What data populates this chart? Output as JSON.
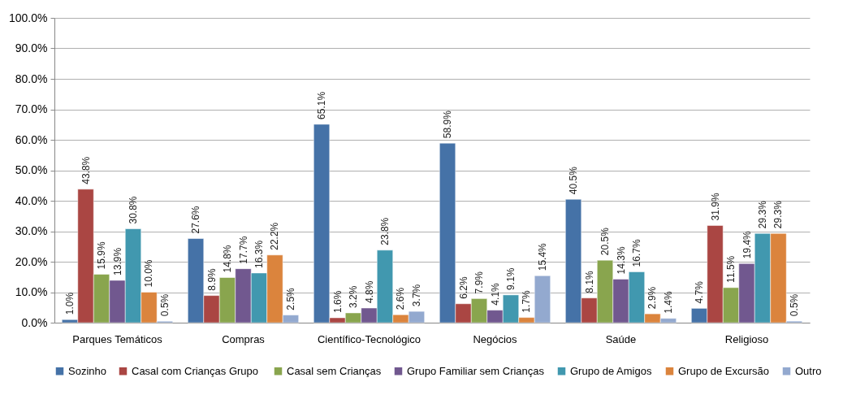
{
  "chart_data": {
    "type": "bar",
    "categories": [
      "Parques Temáticos",
      "Compras",
      "Científico-Tecnológico",
      "Negócios",
      "Saúde",
      "Religioso"
    ],
    "ylim": [
      0,
      100
    ],
    "yticks": [
      {
        "value": 0,
        "label": "0.0%"
      },
      {
        "value": 10,
        "label": "10.0%"
      },
      {
        "value": 20,
        "label": "20.0%"
      },
      {
        "value": 30,
        "label": "30.0%"
      },
      {
        "value": 40,
        "label": "40.0%"
      },
      {
        "value": 50,
        "label": "50.0%"
      },
      {
        "value": 60,
        "label": "60.0%"
      },
      {
        "value": 70,
        "label": "70.0%"
      },
      {
        "value": 80,
        "label": "80.0%"
      },
      {
        "value": 90,
        "label": "90.0%"
      },
      {
        "value": 100,
        "label": "100.0%"
      }
    ],
    "grid": "y",
    "legend": "bottom",
    "series": [
      {
        "name": "Sozinho",
        "color": "#4572a7",
        "values": [
          1.0,
          27.6,
          65.1,
          58.9,
          40.5,
          4.7
        ],
        "value_labels": [
          "1.0%",
          "27.6%",
          "65.1%",
          "58.9%",
          "40.5%",
          "4.7%"
        ]
      },
      {
        "name": "Casal com Crianças  Grupo",
        "color": "#aa4643",
        "values": [
          43.8,
          8.9,
          1.6,
          6.2,
          8.1,
          31.9
        ],
        "value_labels": [
          "43.8%",
          "8.9%",
          "1.6%",
          "6.2%",
          "8.1%",
          "31.9%"
        ]
      },
      {
        "name": "Casal sem Crianças",
        "color": "#89a54e",
        "values": [
          15.9,
          14.8,
          3.2,
          7.9,
          20.5,
          11.5
        ],
        "value_labels": [
          "15.9%",
          "14.8%",
          "3.2%",
          "7.9%",
          "20.5%",
          "11.5%"
        ]
      },
      {
        "name": "Grupo Familiar sem Crianças",
        "color": "#71588f",
        "values": [
          13.9,
          17.7,
          4.8,
          4.1,
          14.3,
          19.4
        ],
        "value_labels": [
          "13.9%",
          "17.7%",
          "4.8%",
          "4.1%",
          "14.3%",
          "19.4%"
        ]
      },
      {
        "name": "Grupo de Amigos",
        "color": "#4198af",
        "values": [
          30.8,
          16.3,
          23.8,
          9.1,
          16.7,
          29.3
        ],
        "value_labels": [
          "30.8%",
          "16.3%",
          "23.8%",
          "9.1%",
          "16.7%",
          "29.3%"
        ]
      },
      {
        "name": "Grupo de Excursão",
        "color": "#db843d",
        "values": [
          10.0,
          22.2,
          2.6,
          1.7,
          2.9,
          29.3
        ],
        "value_labels": [
          "10.0%",
          "22.2%",
          "2.6%",
          "1.7%",
          "2.9%",
          "29.3%"
        ]
      },
      {
        "name": "Outro",
        "color": "#93a9cf",
        "values": [
          0.5,
          2.5,
          3.7,
          15.4,
          1.4,
          0.5
        ],
        "value_labels": [
          "0.5%",
          "2.5%",
          "3.7%",
          "15.4%",
          "1.4%",
          "0.5%"
        ]
      }
    ]
  }
}
